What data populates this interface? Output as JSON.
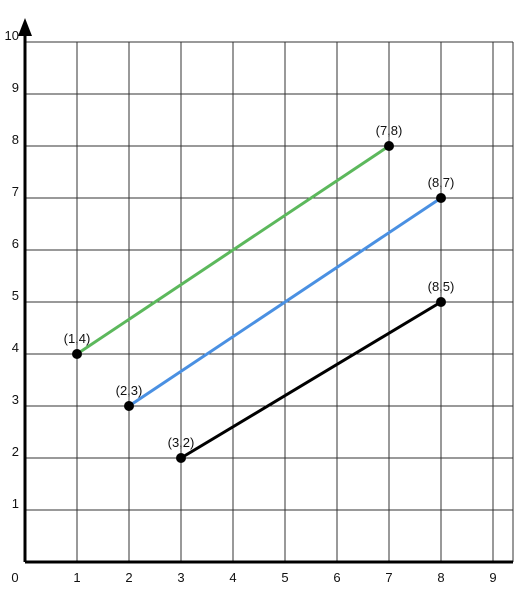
{
  "chart_data": {
    "type": "line",
    "title": "",
    "xlabel": "",
    "ylabel": "",
    "xlim": [
      0,
      9.5
    ],
    "ylim": [
      0,
      10.5
    ],
    "x_ticks": [
      "0",
      "1",
      "2",
      "3",
      "4",
      "5",
      "6",
      "7",
      "8",
      "9"
    ],
    "y_ticks": [
      "1",
      "2",
      "3",
      "4",
      "5",
      "6",
      "7",
      "8",
      "9",
      "10"
    ],
    "grid": true,
    "legend": "none",
    "axis_color": "#000000",
    "grid_color": "#333333",
    "series": [
      {
        "color": "#5cb85c",
        "points": [
          [
            1,
            4
          ],
          [
            7,
            8
          ]
        ],
        "labels": [
          "(1,4)",
          "(7,8)"
        ]
      },
      {
        "color": "#4a90e2",
        "points": [
          [
            2,
            3
          ],
          [
            8,
            7
          ]
        ],
        "labels": [
          "(2,3)",
          "(8,7)"
        ]
      },
      {
        "color": "#000000",
        "points": [
          [
            3,
            2
          ],
          [
            8,
            5
          ]
        ],
        "labels": [
          "(3,2)",
          "(8,5)"
        ]
      }
    ]
  }
}
